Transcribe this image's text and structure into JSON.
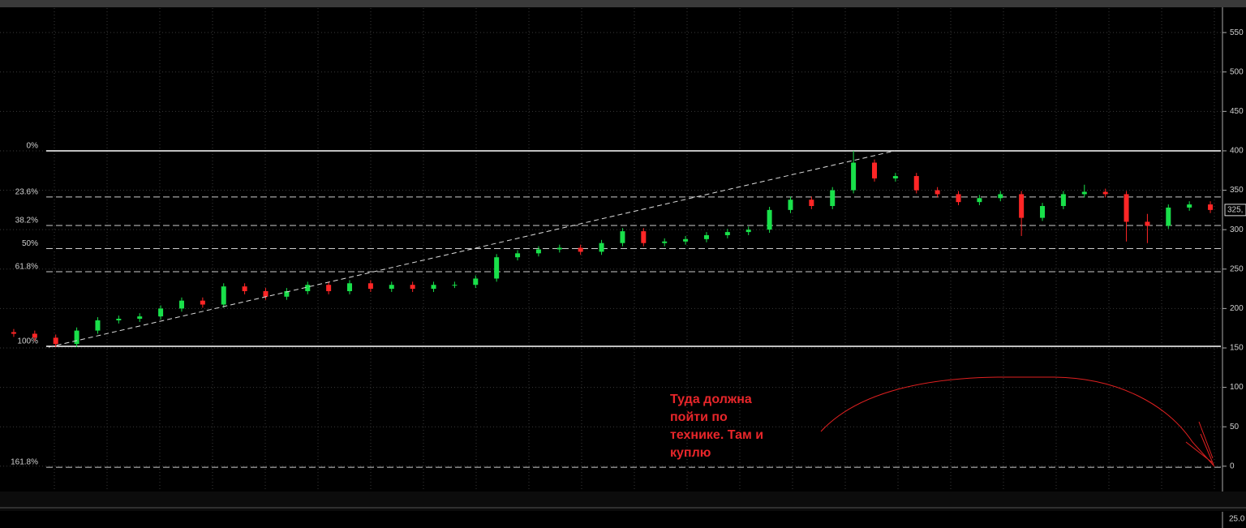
{
  "chart_data": {
    "type": "candlestick",
    "up_color": "#19e04a",
    "down_color": "#ff2626",
    "open": [
      170,
      168,
      163,
      155,
      172,
      185,
      187,
      190,
      200,
      210,
      205,
      228,
      222,
      215,
      222,
      230,
      222,
      232,
      225,
      230,
      225,
      230,
      230,
      238,
      265,
      270,
      275,
      277,
      272,
      283,
      298,
      283,
      285,
      288,
      293,
      297,
      300,
      325,
      338,
      330,
      350,
      385,
      365,
      368,
      350,
      345,
      335,
      340,
      345,
      315,
      330,
      345,
      348,
      345,
      310,
      305,
      328,
      332
    ],
    "high": [
      174,
      172,
      167,
      176,
      189,
      191,
      194,
      204,
      214,
      214,
      232,
      232,
      226,
      226,
      234,
      234,
      236,
      236,
      234,
      234,
      234,
      234,
      242,
      269,
      274,
      279,
      281,
      281,
      287,
      302,
      302,
      289,
      292,
      297,
      301,
      304,
      329,
      342,
      342,
      354,
      400,
      389,
      372,
      372,
      354,
      349,
      344,
      349,
      349,
      334,
      349,
      357,
      352,
      349,
      320,
      332,
      336,
      336
    ],
    "low": [
      164,
      159,
      151,
      151,
      168,
      181,
      183,
      186,
      196,
      201,
      201,
      218,
      211,
      211,
      218,
      218,
      218,
      221,
      221,
      221,
      221,
      226,
      226,
      234,
      261,
      266,
      271,
      268,
      268,
      279,
      279,
      279,
      281,
      284,
      289,
      293,
      296,
      321,
      326,
      326,
      346,
      361,
      361,
      346,
      341,
      331,
      331,
      336,
      292,
      311,
      326,
      341,
      341,
      285,
      283,
      301,
      324,
      321
    ],
    "close": [
      168,
      163,
      155,
      172,
      185,
      187,
      190,
      200,
      210,
      205,
      228,
      222,
      215,
      222,
      230,
      222,
      232,
      225,
      230,
      225,
      230,
      230,
      238,
      265,
      270,
      275,
      277,
      272,
      283,
      298,
      283,
      285,
      288,
      293,
      297,
      300,
      325,
      338,
      330,
      350,
      385,
      365,
      368,
      350,
      345,
      335,
      340,
      345,
      315,
      330,
      345,
      348,
      345,
      310,
      305,
      328,
      332,
      325
    ],
    "ylim": [
      -29,
      581
    ],
    "yticks": [
      0,
      50,
      100,
      150,
      200,
      250,
      300,
      350,
      400,
      450,
      500,
      550
    ],
    "grid": true,
    "last_price": {
      "value": 325,
      "label": "325,"
    },
    "fib_levels": [
      {
        "label": "0%",
        "value": 400,
        "dashed": false
      },
      {
        "label": "23.6%",
        "value": 341.5,
        "dashed": true
      },
      {
        "label": "38.2%",
        "value": 305.3,
        "dashed": true
      },
      {
        "label": "50%",
        "value": 276,
        "dashed": true
      },
      {
        "label": "61.8%",
        "value": 246.7,
        "dashed": true
      },
      {
        "label": "100%",
        "value": 152,
        "dashed": false
      },
      {
        "label": "161.8%",
        "value": -1.3,
        "dashed": true
      }
    ],
    "annotation": [
      "Туда должна",
      "пойти по",
      "технике. Там и",
      "куплю"
    ],
    "lower_panel_tick": "25.0"
  }
}
